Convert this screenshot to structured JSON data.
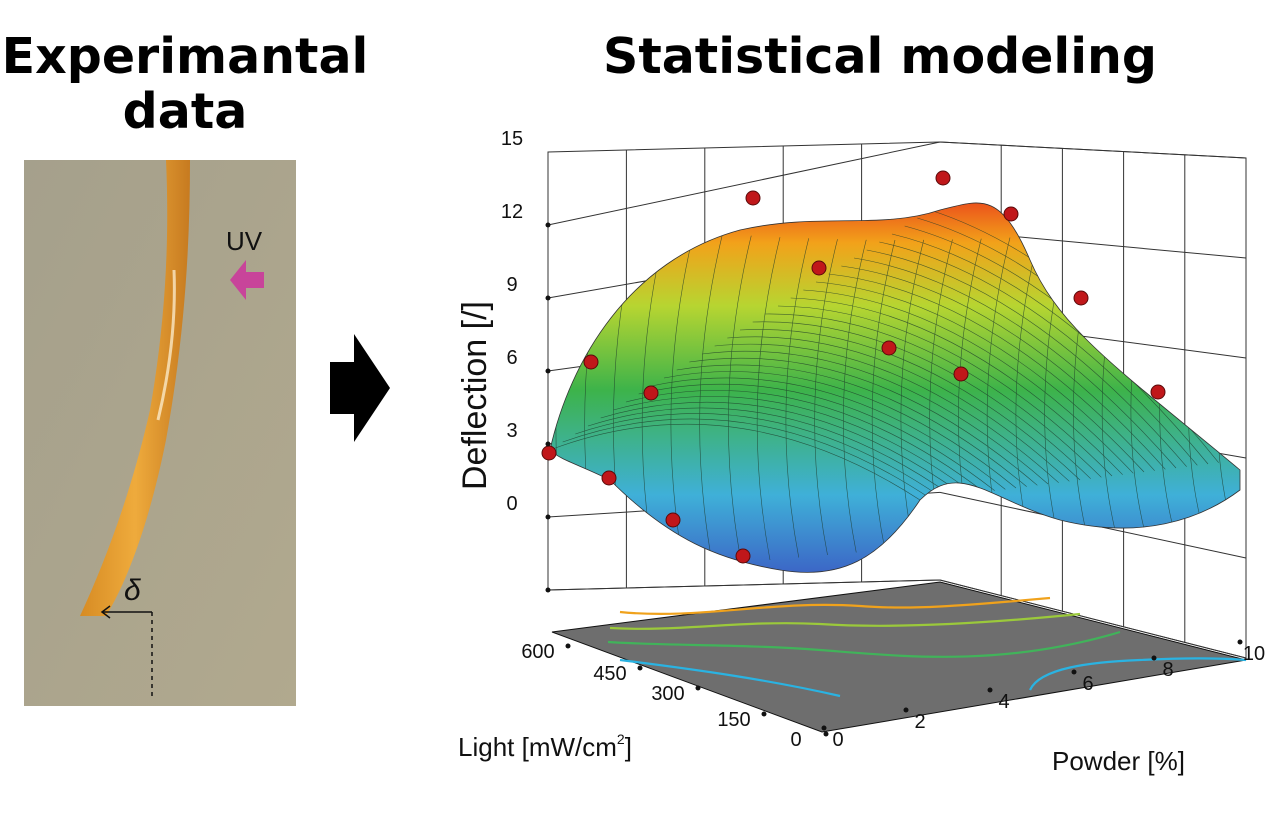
{
  "left_title": {
    "line1": "Experimantal",
    "line2": "data"
  },
  "right_title": "Statistical modeling",
  "photo": {
    "uv_label": "UV",
    "delta_label": "δ"
  },
  "plot": {
    "zlabel": "Deflection [/]",
    "zticks": [
      "0",
      "3",
      "6",
      "9",
      "12",
      "15"
    ],
    "light_label": "Light [mW/cm",
    "light_label_sup": "2",
    "light_label_end": "]",
    "light_ticks": [
      "0",
      "150",
      "300",
      "450",
      "600"
    ],
    "powder_label": "Powder [%]",
    "powder_ticks": [
      "0",
      "2",
      "4",
      "6",
      "8",
      "10"
    ]
  },
  "colors": {
    "accent_uv": "#c8449a",
    "point": "#c0171a",
    "floor": "#6e6e6e"
  }
}
